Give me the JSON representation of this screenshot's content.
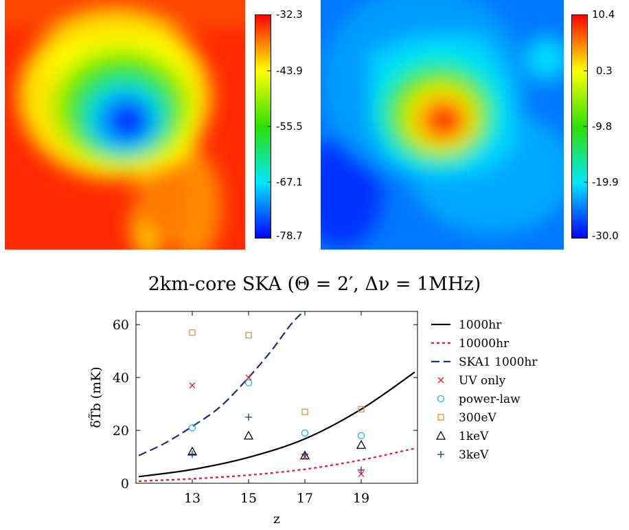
{
  "panels": [
    {
      "name": "left-map",
      "colorbar": {
        "colors": [
          "#0000ff",
          "#00e6ff",
          "#2ee000",
          "#ffff00",
          "#ff0000"
        ],
        "ticks": [
          "-32.3",
          "-43.9",
          "-55.5",
          "-67.1",
          "-78.7"
        ]
      }
    },
    {
      "name": "right-map",
      "colorbar": {
        "colors": [
          "#0000ff",
          "#00e6ff",
          "#2ee000",
          "#ffff00",
          "#ff0000"
        ],
        "ticks": [
          "10.4",
          "0.3",
          "-9.8",
          "-19.9",
          "-30.0"
        ]
      }
    }
  ],
  "chart_data": {
    "type": "scatter",
    "title": "2km-core SKA (Θ = 2′, Δν = 1MHz)",
    "xlabel": "z",
    "ylabel": "δT̃b (mK)",
    "xlim": [
      11,
      21
    ],
    "ylim": [
      0,
      65
    ],
    "xticks": [
      13,
      15,
      17,
      19
    ],
    "yticks": [
      0,
      20,
      40,
      60
    ],
    "legend_position": "right",
    "lines": [
      {
        "name": "1000hr",
        "style": "solid",
        "color": "#000000",
        "x": [
          11.1,
          13,
          15,
          17,
          19,
          20.9
        ],
        "y": [
          2.5,
          5.2,
          9.8,
          16.8,
          28,
          42
        ]
      },
      {
        "name": "10000hr",
        "style": "dotted",
        "color": "#e31a1c",
        "x": [
          11.1,
          13,
          15,
          17,
          19,
          20.9
        ],
        "y": [
          0.8,
          1.7,
          3.1,
          5.3,
          8.8,
          13.2
        ]
      },
      {
        "name": "SKA1 1000hr",
        "style": "dashed",
        "color": "#1f2e7a",
        "x": [
          11.1,
          12,
          13,
          14,
          15,
          15.8,
          16.5,
          16.95
        ],
        "y": [
          10.5,
          15,
          21.5,
          29,
          40,
          50,
          60,
          65
        ]
      }
    ],
    "series": [
      {
        "name": "UV only",
        "marker": "x",
        "color": "#e31a1c",
        "x": [
          13,
          15,
          17,
          19
        ],
        "y": [
          37,
          40,
          10,
          3.5
        ]
      },
      {
        "name": "power-law",
        "marker": "circle",
        "color": "#1fb4e0",
        "x": [
          13,
          15,
          17,
          19
        ],
        "y": [
          21,
          38,
          19,
          18
        ]
      },
      {
        "name": "300eV",
        "marker": "square",
        "color": "#e88a3c",
        "x": [
          13,
          15,
          17,
          19
        ],
        "y": [
          57,
          56,
          27,
          28
        ]
      },
      {
        "name": "1keV",
        "marker": "triangle",
        "color": "#000000",
        "x": [
          13,
          15,
          17,
          19
        ],
        "y": [
          12,
          18,
          10.5,
          14.5
        ]
      },
      {
        "name": "3keV",
        "marker": "plus",
        "color": "#1f2e7a",
        "x": [
          13,
          15,
          17,
          19
        ],
        "y": [
          11,
          25,
          11,
          5
        ]
      }
    ]
  }
}
